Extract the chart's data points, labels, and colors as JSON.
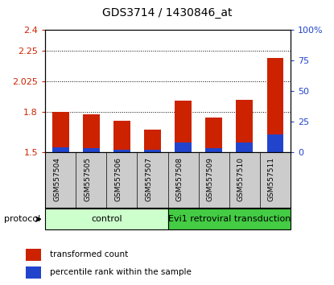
{
  "title": "GDS3714 / 1430846_at",
  "samples": [
    "GSM557504",
    "GSM557505",
    "GSM557506",
    "GSM557507",
    "GSM557508",
    "GSM557509",
    "GSM557510",
    "GSM557511"
  ],
  "transformed_counts": [
    1.795,
    1.782,
    1.735,
    1.667,
    1.882,
    1.755,
    1.888,
    2.195
  ],
  "percentile_ranks": [
    4.0,
    3.5,
    2.5,
    2.5,
    8.0,
    3.5,
    8.0,
    15.0
  ],
  "ylim_left": [
    1.5,
    2.4
  ],
  "yticks_left": [
    1.5,
    1.8,
    2.025,
    2.25,
    2.4
  ],
  "ytick_labels_left": [
    "1.5",
    "1.8",
    "2.025",
    "2.25",
    "2.4"
  ],
  "ylim_right": [
    0,
    100
  ],
  "yticks_right": [
    0,
    25,
    50,
    75,
    100
  ],
  "ytick_labels_right": [
    "0",
    "25",
    "50",
    "75",
    "100%"
  ],
  "bar_width": 0.55,
  "red_color": "#cc2200",
  "blue_color": "#2244cc",
  "groups": [
    {
      "label": "control",
      "indices": [
        0,
        1,
        2,
        3
      ],
      "color": "#ccffcc"
    },
    {
      "label": "Evi1 retroviral transduction",
      "indices": [
        4,
        5,
        6,
        7
      ],
      "color": "#44cc44"
    }
  ],
  "protocol_label": "protocol",
  "base_value": 1.5,
  "sample_bg_color": "#cccccc",
  "legend_items": [
    {
      "label": "transformed count",
      "color": "#cc2200"
    },
    {
      "label": "percentile rank within the sample",
      "color": "#2244cc"
    }
  ]
}
